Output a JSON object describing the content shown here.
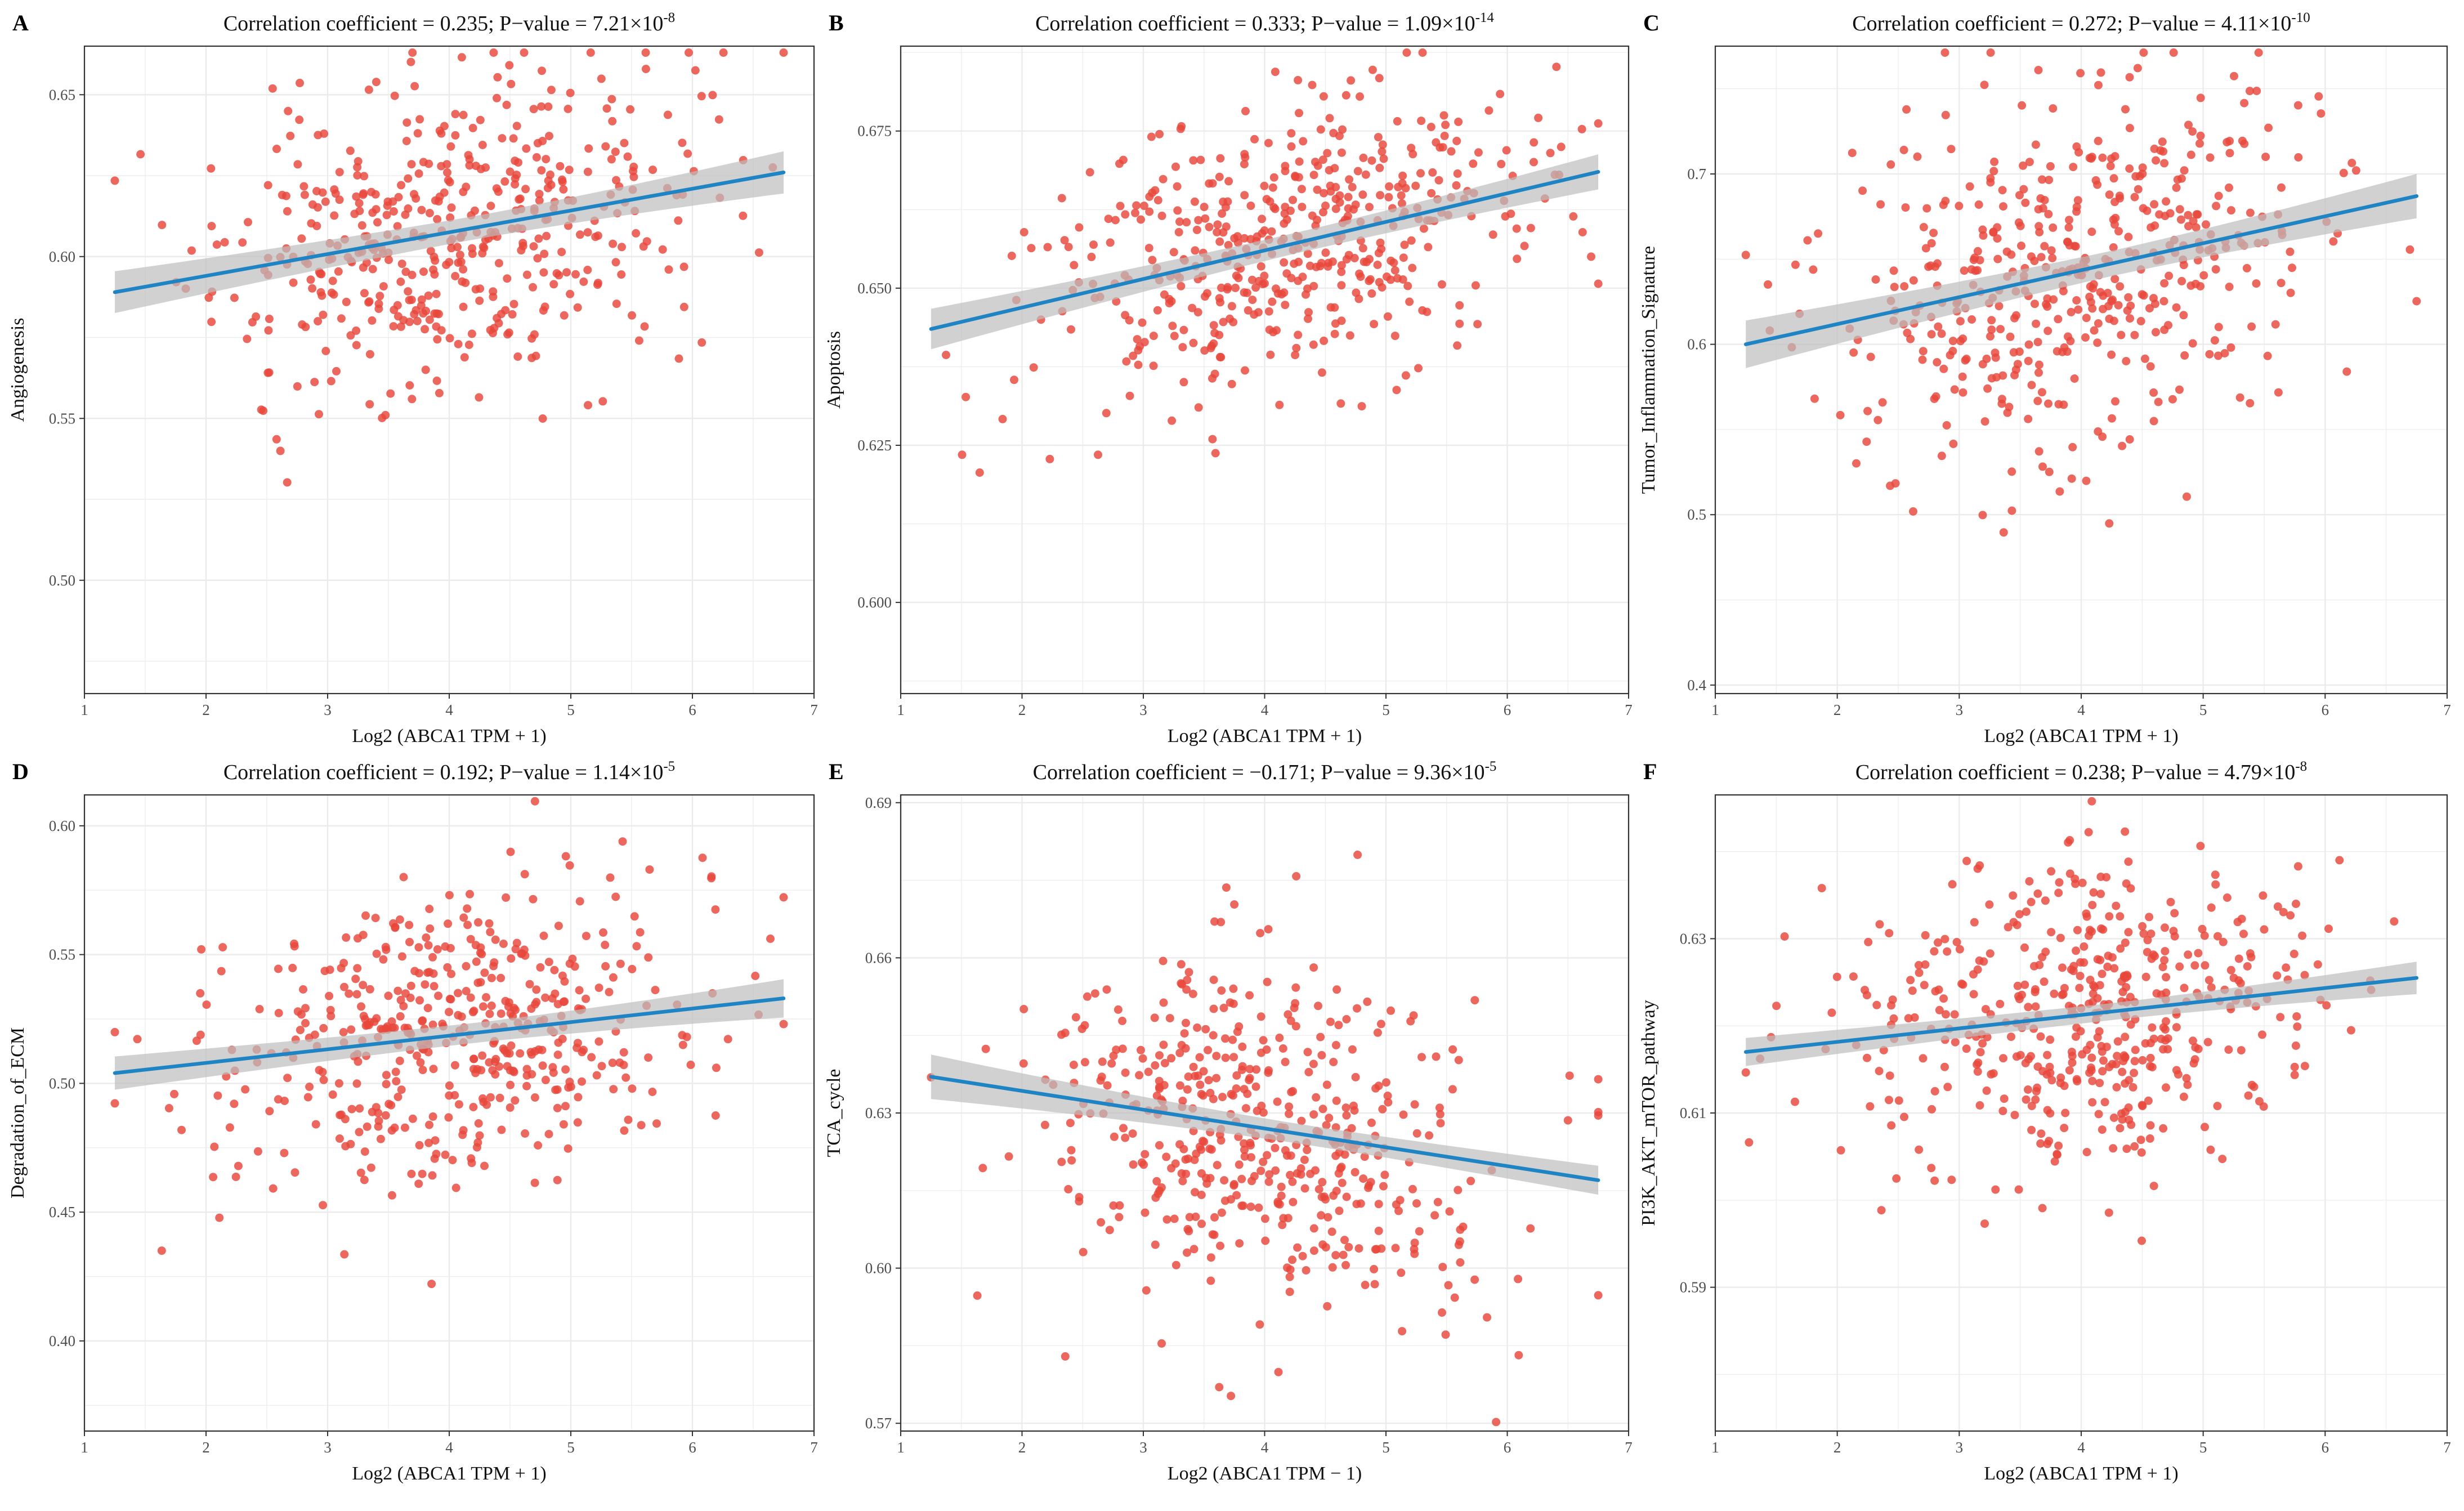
{
  "figure": {
    "background": "#ffffff"
  },
  "style": {
    "point_color": "#e8473a",
    "line_color": "#1f84c4",
    "band_color": "#bdbdbd",
    "grid_color": "#ebebeb",
    "frame_color": "#333333"
  },
  "chart_data": [
    {
      "panel": "A",
      "type": "scatter",
      "title_prefix": "Correlation coefficient = 0.235; P−value = 7.21×10",
      "title_exp": "-8",
      "xlabel": "Log2 (ABCA1 TPM + 1)",
      "ylabel": "Angiogenesis",
      "xlim": [
        1,
        7
      ],
      "ylim": [
        0.465,
        0.665
      ],
      "xticks": [
        1,
        2,
        3,
        4,
        5,
        6,
        7
      ],
      "xtick_labels": [
        "1",
        "2",
        "3",
        "4",
        "5",
        "6",
        "7"
      ],
      "yticks": [
        0.5,
        0.55,
        0.6,
        0.65
      ],
      "ytick_labels": [
        "0.50",
        "0.55",
        "0.60",
        "0.65"
      ],
      "fit": {
        "x": [
          1.25,
          6.75
        ],
        "y": [
          0.589,
          0.626
        ],
        "band_start": 0.006,
        "band_end": 0.007
      },
      "n_points": 480,
      "x_center": 4.0,
      "x_spread": 0.95,
      "resid_sd": 0.024,
      "seed": 11
    },
    {
      "panel": "B",
      "type": "scatter",
      "title_prefix": "Correlation coefficient = 0.333; P−value = 1.09×10",
      "title_exp": "-14",
      "xlabel": "Log2 (ABCA1 TPM + 1)",
      "ylabel": "Apoptosis",
      "xlim": [
        1,
        7
      ],
      "ylim": [
        0.5855,
        0.6885
      ],
      "xticks": [
        1,
        2,
        3,
        4,
        5,
        6,
        7
      ],
      "xtick_labels": [
        "1",
        "2",
        "3",
        "4",
        "5",
        "6",
        "7"
      ],
      "yticks": [
        0.6,
        0.625,
        0.65,
        0.675
      ],
      "ytick_labels": [
        "0.600",
        "0.625",
        "0.650",
        "0.675"
      ],
      "fit": {
        "x": [
          1.25,
          6.75
        ],
        "y": [
          0.6435,
          0.6685
        ],
        "band_start": 0.003,
        "band_end": 0.003
      },
      "n_points": 480,
      "x_center": 4.1,
      "x_spread": 0.95,
      "resid_sd": 0.011,
      "seed": 23
    },
    {
      "panel": "C",
      "type": "scatter",
      "title_prefix": "Correlation coefficient = 0.272; P−value = 4.11×10",
      "title_exp": "-10",
      "xlabel": "Log2 (ABCA1 TPM + 1)",
      "ylabel": "Tumor_Inflammation_Signature",
      "xlim": [
        1,
        7
      ],
      "ylim": [
        0.395,
        0.775
      ],
      "xticks": [
        1,
        2,
        3,
        4,
        5,
        6,
        7
      ],
      "xtick_labels": [
        "1",
        "2",
        "3",
        "4",
        "5",
        "6",
        "7"
      ],
      "yticks": [
        0.4,
        0.5,
        0.6,
        0.7
      ],
      "ytick_labels": [
        "0.4",
        "0.5",
        "0.6",
        "0.7"
      ],
      "fit": {
        "x": [
          1.25,
          6.75
        ],
        "y": [
          0.6,
          0.687
        ],
        "band_start": 0.013,
        "band_end": 0.014
      },
      "n_points": 480,
      "x_center": 4.0,
      "x_spread": 0.95,
      "resid_sd": 0.052,
      "seed": 37
    },
    {
      "panel": "D",
      "type": "scatter",
      "title_prefix": "Correlation coefficient = 0.192; P−value = 1.14×10",
      "title_exp": "-5",
      "xlabel": "Log2 (ABCA1 TPM + 1)",
      "ylabel": "Degradation_of_ECM",
      "xlim": [
        1,
        7
      ],
      "ylim": [
        0.365,
        0.612
      ],
      "xticks": [
        1,
        2,
        3,
        4,
        5,
        6,
        7
      ],
      "xtick_labels": [
        "1",
        "2",
        "3",
        "4",
        "5",
        "6",
        "7"
      ],
      "yticks": [
        0.4,
        0.45,
        0.5,
        0.55,
        0.6
      ],
      "ytick_labels": [
        "0.40",
        "0.45",
        "0.50",
        "0.55",
        "0.60"
      ],
      "fit": {
        "x": [
          1.25,
          6.75
        ],
        "y": [
          0.504,
          0.533
        ],
        "band_start": 0.006,
        "band_end": 0.008
      },
      "n_points": 480,
      "x_center": 4.0,
      "x_spread": 0.95,
      "resid_sd": 0.028,
      "seed": 53
    },
    {
      "panel": "E",
      "type": "scatter",
      "title_prefix": "Correlation coefficient = −0.171; P−value = 9.36×10",
      "title_exp": "-5",
      "xlabel": "Log2 (ABCA1 TPM − 1)",
      "ylabel": "TCA_cycle",
      "xlim": [
        1,
        7
      ],
      "ylim": [
        0.5685,
        0.6915
      ],
      "xticks": [
        1,
        2,
        3,
        4,
        5,
        6,
        7
      ],
      "xtick_labels": [
        "1",
        "2",
        "3",
        "4",
        "5",
        "6",
        "7"
      ],
      "yticks": [
        0.57,
        0.6,
        0.63,
        0.66,
        0.69
      ],
      "ytick_labels": [
        "0.57",
        "0.60",
        "0.63",
        "0.66",
        "0.69"
      ],
      "fit": {
        "x": [
          1.25,
          6.75
        ],
        "y": [
          0.637,
          0.617
        ],
        "band_start": 0.004,
        "band_end": 0.003
      },
      "n_points": 480,
      "x_center": 4.0,
      "x_spread": 0.95,
      "resid_sd": 0.017,
      "seed": 71
    },
    {
      "panel": "F",
      "type": "scatter",
      "title_prefix": "Correlation coefficient = 0.238; P−value = 4.79×10",
      "title_exp": "-8",
      "xlabel": "Log2 (ABCA1 TPM + 1)",
      "ylabel": "PI3K_AKT_mTOR_pathway",
      "xlim": [
        1,
        7
      ],
      "ylim": [
        0.5735,
        0.6465
      ],
      "xticks": [
        1,
        2,
        3,
        4,
        5,
        6,
        7
      ],
      "xtick_labels": [
        "1",
        "2",
        "3",
        "4",
        "5",
        "6",
        "7"
      ],
      "yticks": [
        0.59,
        0.61,
        0.63
      ],
      "ytick_labels": [
        "0.59",
        "0.61",
        "0.63"
      ],
      "fit": {
        "x": [
          1.25,
          6.75
        ],
        "y": [
          0.617,
          0.6255
        ],
        "band_start": 0.0015,
        "band_end": 0.002
      },
      "n_points": 480,
      "x_center": 4.0,
      "x_spread": 0.95,
      "resid_sd": 0.0085,
      "seed": 89
    }
  ]
}
